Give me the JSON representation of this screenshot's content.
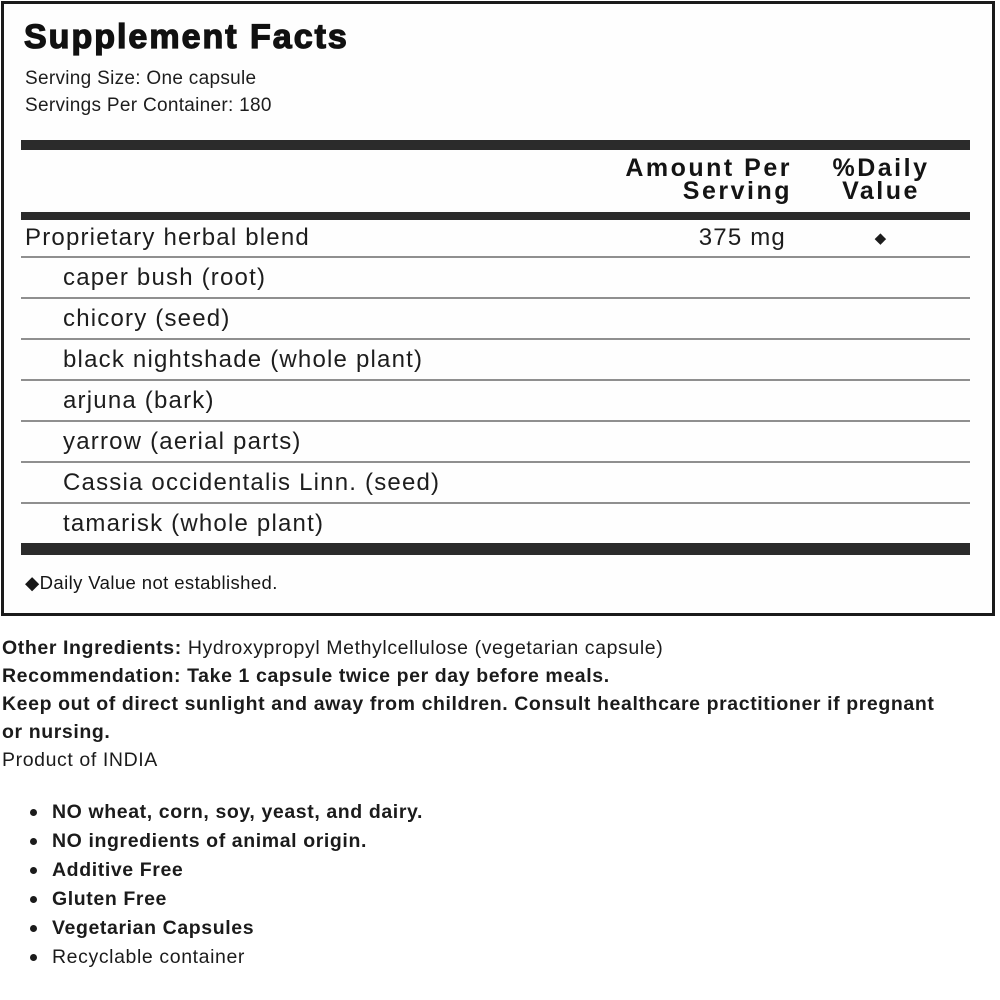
{
  "colors": {
    "text": "#1d1d1d",
    "thick_bar": "#2b2b2b",
    "thin_divider": "#8f8f8f",
    "panel_border": "#1a1a1a",
    "background": "#ffffff"
  },
  "panel": {
    "title": "Supplement Facts",
    "serving_size": "Serving Size: One capsule",
    "servings_per_container": "Servings Per Container: 180",
    "header": {
      "amount_line1": "Amount Per",
      "amount_line2": "Serving",
      "dv_line1": "%Daily",
      "dv_line2": "Value"
    },
    "rows": [
      {
        "name": "Proprietary herbal blend",
        "amount": "375 mg",
        "dv": "◆"
      },
      {
        "name": "caper bush (root)"
      },
      {
        "name": "chicory (seed)"
      },
      {
        "name": "black nightshade (whole plant)"
      },
      {
        "name": "arjuna (bark)"
      },
      {
        "name": "yarrow (aerial parts)"
      },
      {
        "name": "Cassia occidentalis Linn. (seed)"
      },
      {
        "name": "tamarisk (whole plant)"
      }
    ],
    "footnote": "◆Daily Value not established."
  },
  "info": {
    "other_ingredients_label": "Other Ingredients:",
    "other_ingredients_value": " Hydroxypropyl Methylcellulose (vegetarian capsule)",
    "recommendation": "Recommendation: Take 1 capsule twice per day before meals.",
    "warning": "Keep out of direct sunlight and away from children. Consult healthcare practitioner if pregnant or nursing.",
    "origin": "Product of INDIA",
    "bullets": [
      {
        "text": "NO wheat, corn, soy, yeast, and dairy."
      },
      {
        "text": "NO ingredients of animal origin."
      },
      {
        "text": "Additive Free"
      },
      {
        "text": "Gluten Free"
      },
      {
        "text": "Vegetarian Capsules"
      },
      {
        "text": "Recyclable container"
      }
    ]
  }
}
